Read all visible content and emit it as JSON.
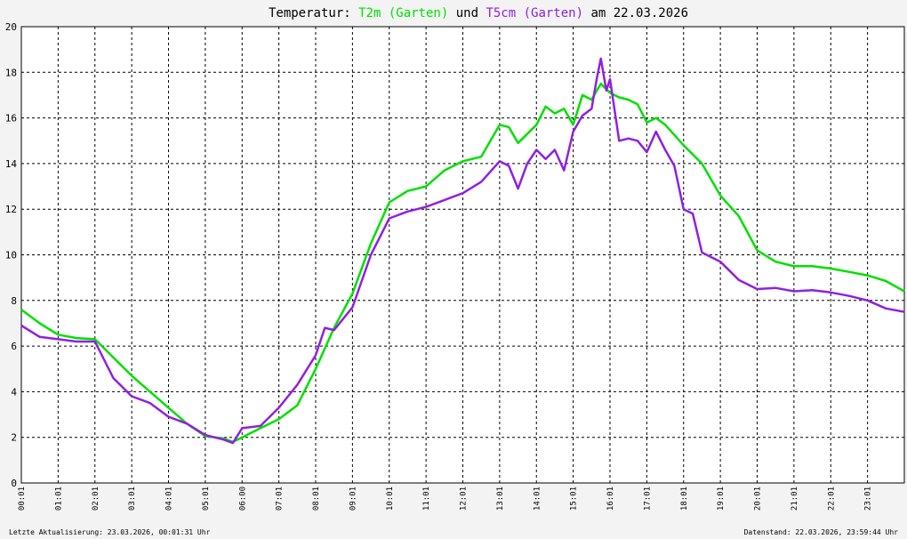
{
  "chart_data": {
    "type": "line",
    "title": {
      "prefix": "Temperatur: ",
      "series1_label": "T2m (Garten)",
      "middle": " und ",
      "series2_label": "T5cm (Garten)",
      "suffix": " am 22.03.2026"
    },
    "footer": {
      "left": "Letzte Aktualisierung: 23.03.2026, 00:01:31 Uhr",
      "right": "Datenstand: 22.03.2026, 23:59:44 Uhr"
    },
    "ylim": [
      0,
      20
    ],
    "yticks": [
      "0",
      "2",
      "4",
      "6",
      "8",
      "10",
      "12",
      "14",
      "16",
      "18",
      "20"
    ],
    "xlim": [
      0,
      24
    ],
    "xticks": [
      "00:01",
      "01:01",
      "02:01",
      "03:01",
      "04:01",
      "05:01",
      "06:00",
      "07:01",
      "08:01",
      "09:01",
      "10:01",
      "11:01",
      "12:01",
      "13:01",
      "14:01",
      "15:01",
      "16:01",
      "17:01",
      "18:01",
      "19:01",
      "20:01",
      "21:01",
      "22:01",
      "23:01"
    ],
    "grid": true,
    "colors": {
      "series1": "#00e000",
      "series2": "#9020e0",
      "grid": "#000000",
      "background": "#ffffff"
    },
    "series": [
      {
        "name": "T2m (Garten)",
        "color": "#00e000",
        "x": [
          0,
          0.5,
          1.0,
          1.5,
          2.0,
          2.5,
          3.0,
          3.5,
          4.0,
          4.5,
          5.0,
          5.5,
          5.75,
          6.0,
          6.5,
          7.0,
          7.5,
          8.0,
          8.5,
          9.0,
          9.5,
          10.0,
          10.5,
          11.0,
          11.5,
          12.0,
          12.5,
          13.0,
          13.25,
          13.5,
          14.0,
          14.25,
          14.5,
          14.75,
          15.0,
          15.25,
          15.5,
          15.75,
          16.0,
          16.25,
          16.5,
          16.75,
          17.0,
          17.25,
          17.5,
          18.0,
          18.5,
          19.0,
          19.5,
          20.0,
          20.5,
          21.0,
          21.5,
          22.0,
          22.5,
          23.0,
          23.5,
          24.0
        ],
        "y": [
          7.6,
          7.0,
          6.5,
          6.35,
          6.3,
          5.5,
          4.7,
          4.0,
          3.3,
          2.6,
          2.05,
          1.95,
          1.8,
          2.0,
          2.4,
          2.8,
          3.4,
          5.0,
          6.8,
          8.3,
          10.5,
          12.3,
          12.8,
          13.0,
          13.7,
          14.1,
          14.3,
          15.7,
          15.6,
          14.9,
          15.7,
          16.5,
          16.2,
          16.4,
          15.7,
          17.0,
          16.8,
          17.5,
          17.1,
          16.9,
          16.8,
          16.6,
          15.8,
          16.0,
          15.7,
          14.8,
          14.0,
          12.6,
          11.7,
          10.2,
          9.7,
          9.5,
          9.5,
          9.4,
          9.25,
          9.1,
          8.85,
          8.4
        ]
      },
      {
        "name": "T5cm (Garten)",
        "color": "#9020e0",
        "x": [
          0,
          0.5,
          1.0,
          1.5,
          2.0,
          2.5,
          3.0,
          3.5,
          4.0,
          4.5,
          5.0,
          5.5,
          5.75,
          6.0,
          6.5,
          7.0,
          7.5,
          8.0,
          8.25,
          8.5,
          9.0,
          9.5,
          10.0,
          10.5,
          11.0,
          11.5,
          12.0,
          12.5,
          13.0,
          13.25,
          13.5,
          13.75,
          14.0,
          14.25,
          14.5,
          14.75,
          15.0,
          15.25,
          15.5,
          15.65,
          15.75,
          15.9,
          16.0,
          16.25,
          16.5,
          16.75,
          17.0,
          17.25,
          17.5,
          17.75,
          18.0,
          18.25,
          18.5,
          19.0,
          19.5,
          20.0,
          20.5,
          21.0,
          21.5,
          22.0,
          22.5,
          23.0,
          23.5,
          24.0
        ],
        "y": [
          6.9,
          6.4,
          6.3,
          6.2,
          6.2,
          4.6,
          3.8,
          3.5,
          2.9,
          2.6,
          2.1,
          1.9,
          1.75,
          2.4,
          2.5,
          3.3,
          4.3,
          5.6,
          6.8,
          6.7,
          7.7,
          10.0,
          11.6,
          11.9,
          12.1,
          12.4,
          12.7,
          13.2,
          14.1,
          13.9,
          12.9,
          14.0,
          14.6,
          14.2,
          14.6,
          13.7,
          15.4,
          16.1,
          16.4,
          17.8,
          18.6,
          17.2,
          17.7,
          15.0,
          15.1,
          15.0,
          14.5,
          15.4,
          14.6,
          13.9,
          12.0,
          11.8,
          10.1,
          9.7,
          8.9,
          8.5,
          8.55,
          8.4,
          8.45,
          8.35,
          8.2,
          8.0,
          7.65,
          7.5
        ]
      }
    ]
  }
}
